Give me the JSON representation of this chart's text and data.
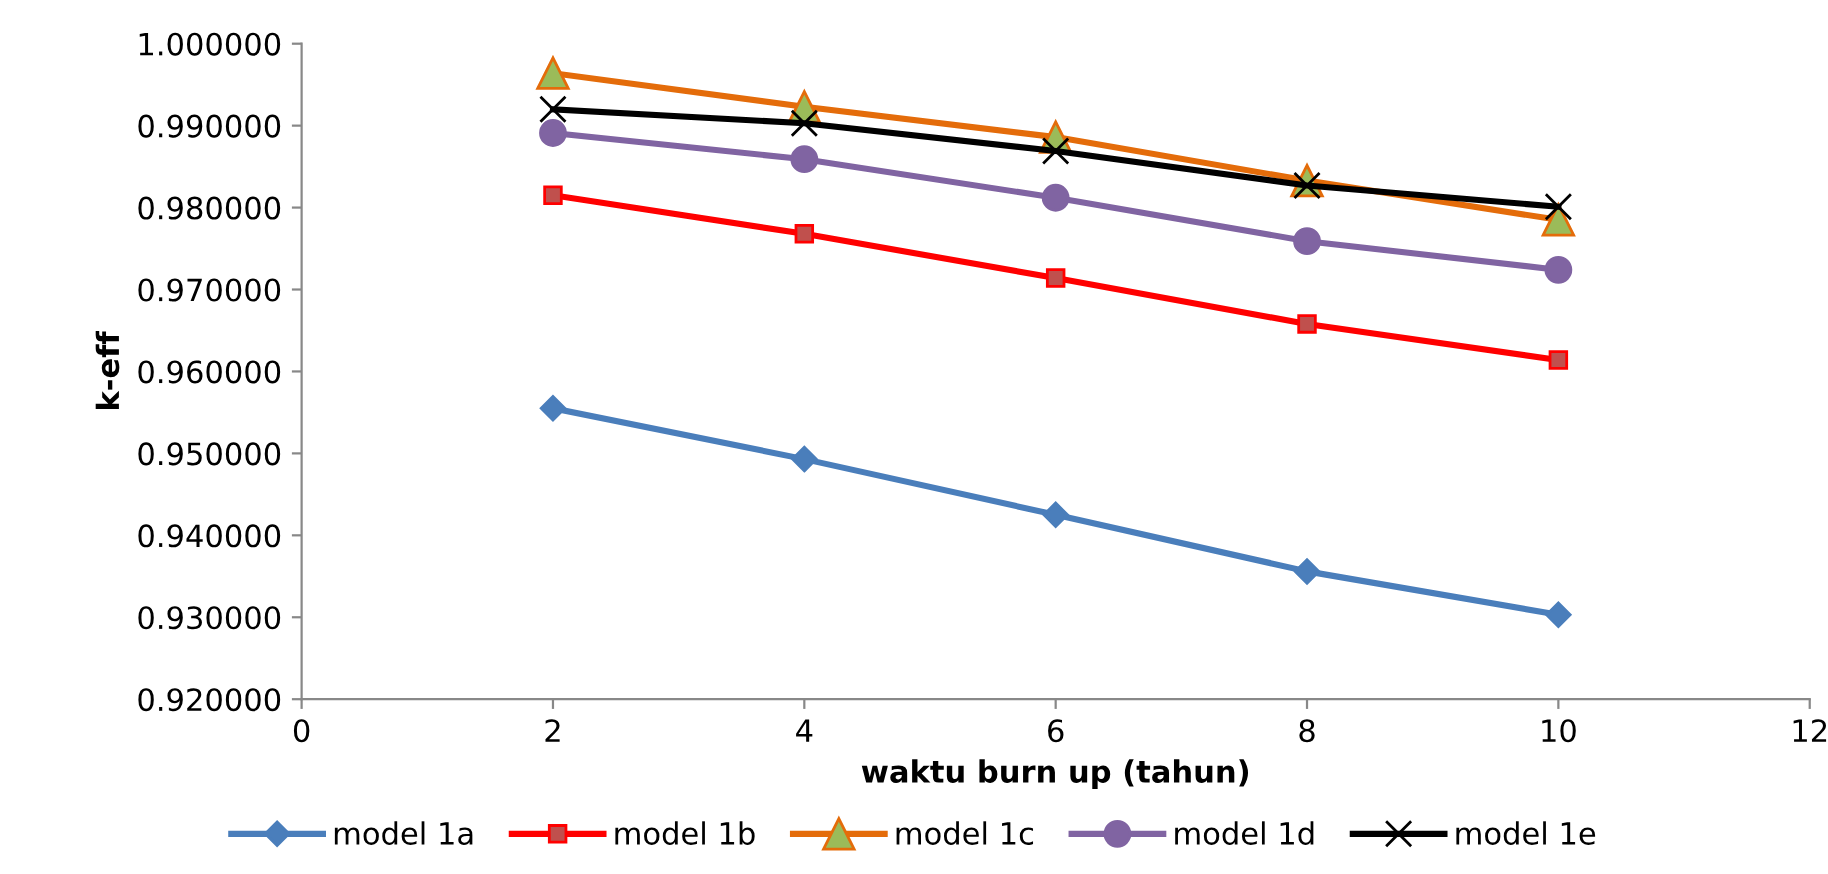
{
  "chart_data": {
    "type": "line",
    "xlabel": "waktu burn up (tahun)",
    "ylabel": "k-eff",
    "x": [
      2,
      4,
      6,
      8,
      10
    ],
    "xlim": [
      0,
      12
    ],
    "xticks": [
      0,
      2,
      4,
      6,
      8,
      10,
      12
    ],
    "ylim": [
      0.92,
      1.0
    ],
    "yticks": [
      {
        "value": 0.92,
        "label": "0.920000"
      },
      {
        "value": 0.93,
        "label": "0.930000"
      },
      {
        "value": 0.94,
        "label": "0.940000"
      },
      {
        "value": 0.95,
        "label": "0.950000"
      },
      {
        "value": 0.96,
        "label": "0.960000"
      },
      {
        "value": 0.97,
        "label": "0.970000"
      },
      {
        "value": 0.98,
        "label": "0.980000"
      },
      {
        "value": 0.99,
        "label": "0.990000"
      },
      {
        "value": 1.0,
        "label": "1.000000"
      }
    ],
    "grid": false,
    "legend": "bottom",
    "series": [
      {
        "name": "model 1a",
        "color": "#4a7ebb",
        "marker": "diamond",
        "values": [
          0.9555,
          0.9493,
          0.9425,
          0.9356,
          0.9303
        ]
      },
      {
        "name": "model 1b",
        "color": "#ff0000",
        "marker": "square",
        "values": [
          0.9815,
          0.9768,
          0.9714,
          0.9658,
          0.9614
        ]
      },
      {
        "name": "model 1c",
        "color": "#e46c0a",
        "marker": "triangle",
        "values": [
          0.9964,
          0.9923,
          0.9886,
          0.9833,
          0.9785
        ]
      },
      {
        "name": "model 1d",
        "color": "#8064a2",
        "marker": "circle",
        "values": [
          0.9891,
          0.9859,
          0.9812,
          0.9759,
          0.9724
        ]
      },
      {
        "name": "model 1e",
        "color": "#000000",
        "marker": "cross",
        "values": [
          0.992,
          0.9903,
          0.9869,
          0.9827,
          0.9801
        ]
      }
    ]
  }
}
